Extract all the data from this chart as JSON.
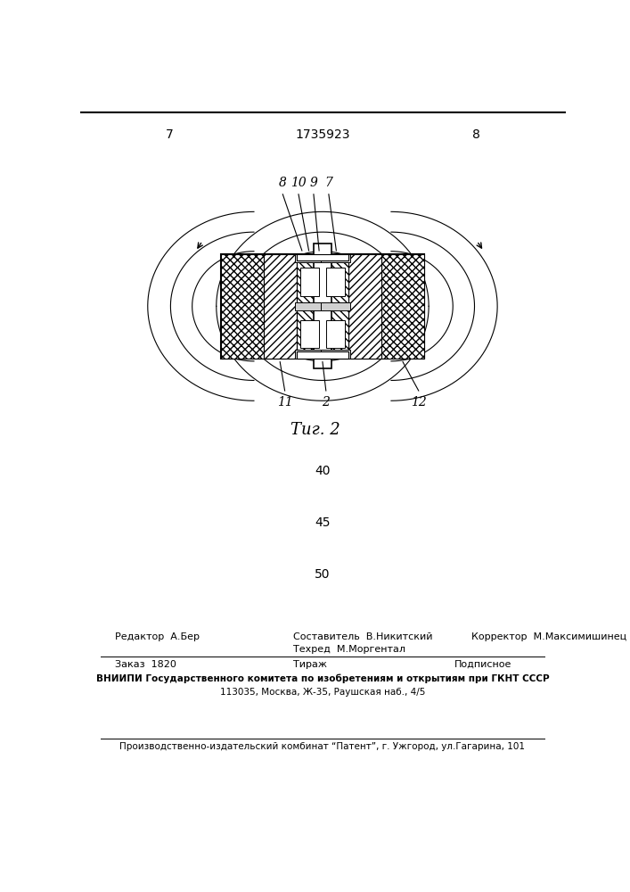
{
  "page_num_left": "7",
  "page_num_right": "8",
  "patent_num": "1735923",
  "fig_caption": "Τиг. 2",
  "footer_line1_left": "Редактор  А.Бер",
  "footer_line1_center": "Составитель  В.Никитский",
  "footer_line2_center": "Техред  М.Моргентал",
  "footer_line1_right": "Корректор  М.Максимишинец",
  "footer2_left": "Заказ  1820",
  "footer2_center": "Тираж",
  "footer2_right": "Подписное",
  "footer3": "ВНИИПИ Государственного комитета по изобретениям и открытиям при ГКНТ СССР",
  "footer4": "113035, Москва, Ж-35, Раушская наб., 4/5",
  "footer5": "Производственно-издательский комбинат “Патент”, г. Ужгород, ул.Гагарина, 101",
  "num_40": "40",
  "num_45": "45",
  "num_50": "50",
  "bg_color": "#ffffff",
  "line_color": "#000000"
}
